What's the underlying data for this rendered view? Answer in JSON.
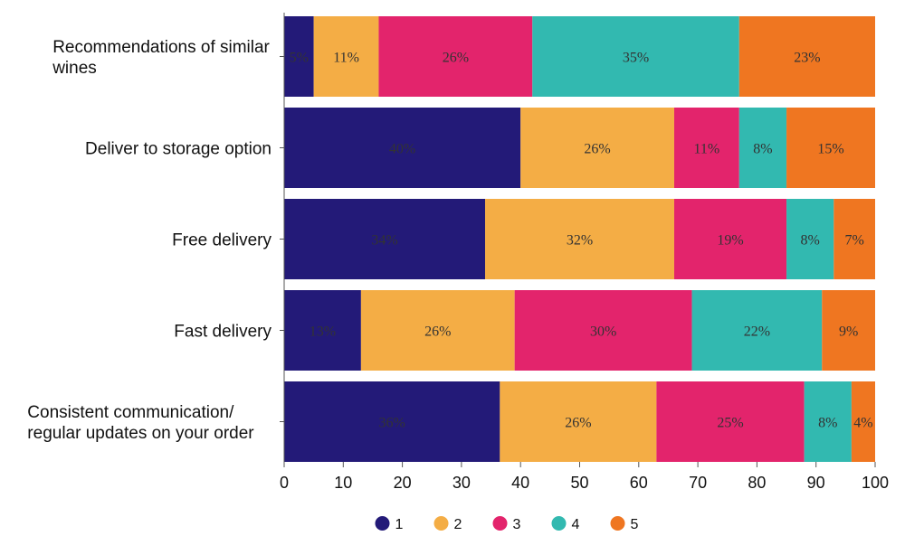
{
  "chart_data": {
    "type": "bar",
    "orientation": "horizontal",
    "stacked": true,
    "categories": [
      [
        "Recommendations of similar",
        "wines"
      ],
      [
        "Deliver to storage option"
      ],
      [
        "Free delivery"
      ],
      [
        "Fast delivery"
      ],
      [
        "Consistent communication/",
        "regular updates on your order"
      ]
    ],
    "series": [
      {
        "name": "1",
        "color": "#231a78",
        "values": [
          5,
          40,
          34,
          13,
          36.5
        ],
        "labels": [
          "5%",
          "40%",
          "34%",
          "13%",
          "36%"
        ]
      },
      {
        "name": "2",
        "color": "#f4ad45",
        "values": [
          11,
          26,
          32,
          26,
          26.5
        ],
        "labels": [
          "11%",
          "26%",
          "32%",
          "26%",
          "26%"
        ]
      },
      {
        "name": "3",
        "color": "#e3246c",
        "values": [
          26,
          11,
          19,
          30,
          25
        ],
        "labels": [
          "26%",
          "11%",
          "19%",
          "30%",
          "25%"
        ]
      },
      {
        "name": "4",
        "color": "#32b9b0",
        "values": [
          35,
          8,
          8,
          22,
          8
        ],
        "labels": [
          "35%",
          "8%",
          "8%",
          "22%",
          "8%"
        ]
      },
      {
        "name": "5",
        "color": "#ef7621",
        "values": [
          23,
          15,
          7,
          9,
          4
        ],
        "labels": [
          "23%",
          "15%",
          "7%",
          "9%",
          "4%"
        ]
      }
    ],
    "xlim": [
      0,
      100
    ],
    "xticks": [
      "0",
      "10",
      "20",
      "30",
      "40",
      "50",
      "60",
      "70",
      "80",
      "90",
      "100"
    ],
    "title": "",
    "xlabel": "",
    "ylabel": "",
    "legend_position": "bottom-center",
    "grid": false
  }
}
